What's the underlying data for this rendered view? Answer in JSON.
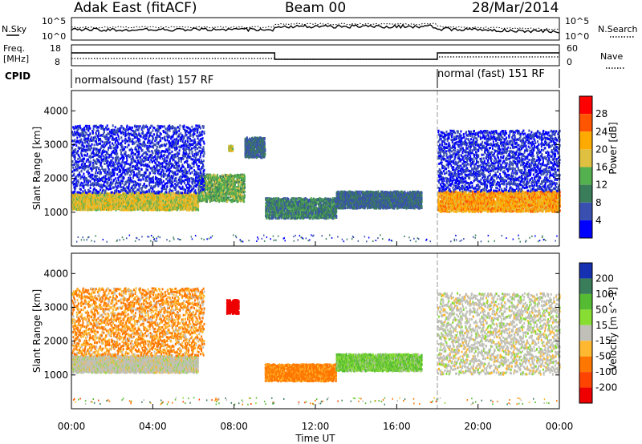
{
  "header": {
    "station": "Adak East (fitACF)",
    "beam": "Beam 00",
    "date": "28/Mar/2014"
  },
  "noise_panel": {
    "left_label": "N.Sky",
    "right_label": "N.Search",
    "left_ticks": [
      "10^5",
      "10^0"
    ],
    "right_ticks": [
      "10^5",
      "10^0"
    ]
  },
  "freq_panel": {
    "left_label_1": "Freq.",
    "left_label_2": "[MHz]",
    "left_ticks": [
      "18",
      "8"
    ],
    "right_label": "Nave",
    "right_ticks": [
      "60",
      "0"
    ]
  },
  "cpid": {
    "label": "CPID",
    "segments": [
      {
        "name": "normalsound (fast) 157 RF",
        "start_hour": 0,
        "end_hour": 18
      },
      {
        "name": "normal (fast) 151 RF",
        "start_hour": 18,
        "end_hour": 24
      }
    ]
  },
  "axes": {
    "xlabel": "Time UT",
    "ylabel": "Slant Range [km]",
    "xticks": [
      "00:00",
      "04:00",
      "08:00",
      "12:00",
      "16:00",
      "20:00",
      "00:00"
    ],
    "yticks": [
      "1000",
      "2000",
      "3000",
      "4000"
    ]
  },
  "power_colorbar": {
    "label": "Power [dB]",
    "ticks": [
      "28",
      "24",
      "20",
      "16",
      "12",
      "8",
      "4"
    ],
    "colors": [
      "#ff0000",
      "#ff5500",
      "#ffaa00",
      "#e0c040",
      "#55b050",
      "#3a7d5a",
      "#3a50b0",
      "#0000ff"
    ]
  },
  "velocity_colorbar": {
    "label": "Velocity [m s^-1]",
    "ticks": [
      "200",
      "100",
      "50",
      "15",
      "-15",
      "-50",
      "-100",
      "-200"
    ],
    "colors": [
      "#1530b0",
      "#3a7d5a",
      "#55bb33",
      "#88dd33",
      "#c0c0b8",
      "#ffb830",
      "#ff7700",
      "#ff4400",
      "#ee0000"
    ]
  },
  "chart_data": [
    {
      "type": "heatmap",
      "title": "Power",
      "xlabel": "Time UT",
      "ylabel": "Slant Range [km]",
      "xlim_hours": [
        0,
        24
      ],
      "ylim_km": [
        0,
        4600
      ],
      "colorbar": "Power [dB]",
      "regions": [
        {
          "t_start": 0,
          "t_end": 6.2,
          "r_low": 1050,
          "r_high": 1550,
          "power_db": 20
        },
        {
          "t_start": 6.2,
          "t_end": 8.5,
          "r_low": 1300,
          "r_high": 2100,
          "power_db": 16
        },
        {
          "t_start": 0,
          "t_end": 6.5,
          "r_low": 1550,
          "r_high": 3550,
          "power_db": 6
        },
        {
          "t_start": 8.5,
          "t_end": 9.5,
          "r_low": 2600,
          "r_high": 3200,
          "power_db": 10
        },
        {
          "t_start": 7.7,
          "t_end": 7.9,
          "r_low": 2800,
          "r_high": 2950,
          "power_db": 20
        },
        {
          "t_start": 9.5,
          "t_end": 13.0,
          "r_low": 800,
          "r_high": 1400,
          "power_db": 12
        },
        {
          "t_start": 13.0,
          "t_end": 17.2,
          "r_low": 1100,
          "r_high": 1600,
          "power_db": 10
        },
        {
          "t_start": 18.0,
          "t_end": 24.0,
          "r_low": 1000,
          "r_high": 1600,
          "power_db": 24
        },
        {
          "t_start": 18.0,
          "t_end": 24.0,
          "r_low": 1600,
          "r_high": 3400,
          "power_db": 6
        }
      ]
    },
    {
      "type": "heatmap",
      "title": "Velocity",
      "xlabel": "Time UT",
      "ylabel": "Slant Range [km]",
      "xlim_hours": [
        0,
        24
      ],
      "ylim_km": [
        0,
        4600
      ],
      "colorbar": "Velocity [m s^-1]",
      "regions": [
        {
          "t_start": 0,
          "t_end": 6.2,
          "r_low": 1050,
          "r_high": 1550,
          "velocity": 0
        },
        {
          "t_start": 0,
          "t_end": 6.5,
          "r_low": 1550,
          "r_high": 3550,
          "velocity": -30
        },
        {
          "t_start": 7.6,
          "t_end": 8.2,
          "r_low": 2800,
          "r_high": 3200,
          "velocity": -200
        },
        {
          "t_start": 9.5,
          "t_end": 13.0,
          "r_low": 800,
          "r_high": 1300,
          "velocity": -40
        },
        {
          "t_start": 13.0,
          "t_end": 17.2,
          "r_low": 1100,
          "r_high": 1600,
          "velocity": 30
        },
        {
          "t_start": 18.0,
          "t_end": 24.0,
          "r_low": 1000,
          "r_high": 3400,
          "velocity": 0
        }
      ]
    }
  ]
}
